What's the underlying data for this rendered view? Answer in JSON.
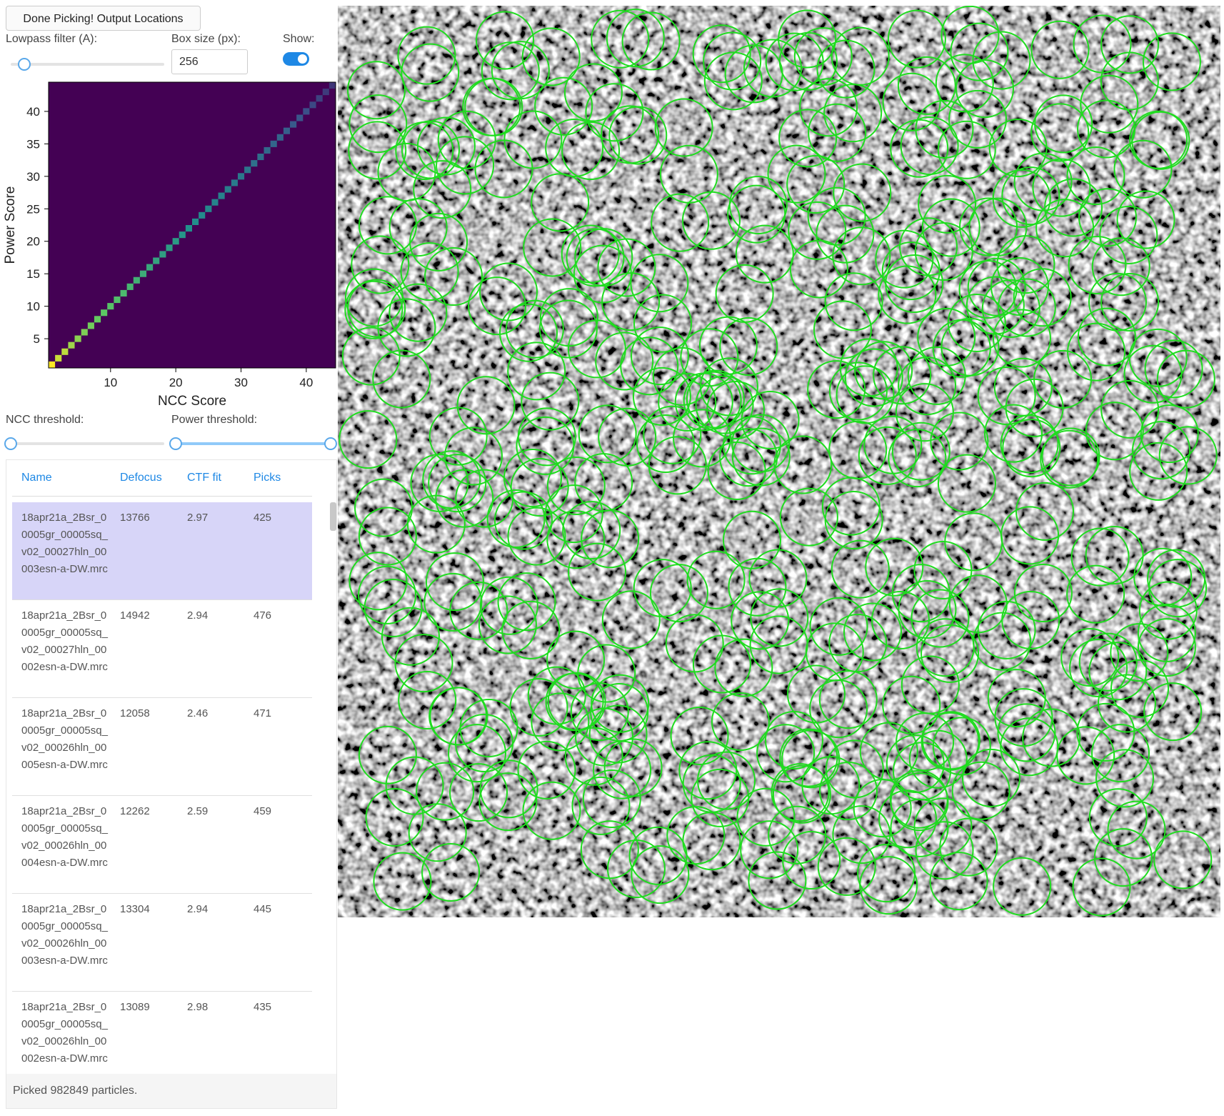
{
  "controls": {
    "button": "Done Picking! Output Locations",
    "lowpass_label": "Lowpass filter (A):",
    "box_size_label": "Box size (px):",
    "box_size_value": 256,
    "show_label": "Show:",
    "ncc_threshold_label": "NCC threshold:",
    "power_threshold_label": "Power threshold:"
  },
  "chart_data": {
    "type": "heatmap",
    "xlabel": "NCC Score",
    "ylabel": "Power Score",
    "colormap": "viridis",
    "xlim": [
      0.5,
      44.5
    ],
    "ylim": [
      0.5,
      44.5
    ],
    "xticks": [
      10,
      20,
      30,
      40
    ],
    "yticks": [
      5,
      10,
      15,
      20,
      25,
      30,
      35,
      40
    ],
    "x": [
      1,
      2,
      3,
      4,
      5,
      6,
      7,
      8,
      9,
      10,
      11,
      12,
      13,
      14,
      15,
      16,
      17,
      18,
      19,
      20,
      21,
      22,
      23,
      24,
      25,
      26,
      27,
      28,
      29,
      30,
      31,
      32,
      33,
      34,
      35,
      36,
      37,
      38,
      39,
      40,
      41,
      42,
      43,
      44
    ],
    "values": [
      1.0,
      0.92,
      0.9,
      0.85,
      0.82,
      0.8,
      0.78,
      0.76,
      0.74,
      0.72,
      0.7,
      0.68,
      0.66,
      0.64,
      0.62,
      0.6,
      0.58,
      0.56,
      0.55,
      0.54,
      0.52,
      0.5,
      0.49,
      0.48,
      0.46,
      0.45,
      0.44,
      0.42,
      0.41,
      0.4,
      0.38,
      0.37,
      0.36,
      0.34,
      0.33,
      0.32,
      0.3,
      0.28,
      0.26,
      0.24,
      0.22,
      0.2,
      0.18,
      0.16
    ]
  },
  "table": {
    "columns": [
      "Name",
      "Defocus",
      "CTF fit",
      "Picks"
    ],
    "rows": [
      [
        "18apr21a_2Bsr_00005gr_00005sq_v02_00027hln_00003esn-a-DW.mrc",
        13766,
        2.97,
        425
      ],
      [
        "18apr21a_2Bsr_00005gr_00005sq_v02_00027hln_00002esn-a-DW.mrc",
        14942,
        2.94,
        476
      ],
      [
        "18apr21a_2Bsr_00005gr_00005sq_v02_00026hln_00005esn-a-DW.mrc",
        12058,
        2.46,
        471
      ],
      [
        "18apr21a_2Bsr_00005gr_00005sq_v02_00026hln_00004esn-a-DW.mrc",
        12262,
        2.59,
        459
      ],
      [
        "18apr21a_2Bsr_00005gr_00005sq_v02_00026hln_00003esn-a-DW.mrc",
        13304,
        2.94,
        445
      ],
      [
        "18apr21a_2Bsr_00005gr_00005sq_v02_00026hln_00002esn-a-DW.mrc",
        13089,
        2.98,
        435
      ]
    ]
  },
  "status": "Picked 982849 particles."
}
